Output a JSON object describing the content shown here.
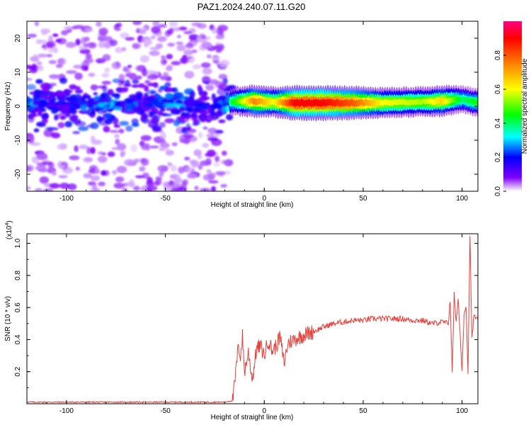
{
  "title": "PAZ1.2024.240.07.11.G20",
  "chart_data": [
    {
      "type": "heatmap",
      "xlabel": "Height of straight line (km)",
      "ylabel": "Frequency (Hz)",
      "xlim": [
        -120,
        108
      ],
      "ylim": [
        -25,
        25
      ],
      "x_ticks": [
        -100,
        -50,
        0,
        50,
        100
      ],
      "y_ticks": [
        20,
        10,
        0,
        -10,
        -20
      ],
      "x_ticks_labels": [
        "-100",
        "-50",
        "0",
        "50",
        "100"
      ],
      "y_ticks_labels": [
        "20",
        "10",
        "0",
        "-10",
        "-20"
      ],
      "colorbar": {
        "label": "Normalized spectral amplitude",
        "range": [
          0,
          1
        ],
        "ticks": [
          0.0,
          0.2,
          0.4,
          0.6,
          0.8
        ],
        "tick_labels": [
          "0.0",
          "0.2",
          "0.4",
          "0.6",
          "0.8"
        ],
        "colormap": [
          "#ffffff",
          "#7f00ff",
          "#0000ff",
          "#00ffff",
          "#00ff00",
          "#ffff00",
          "#ff8000",
          "#ff0000",
          "#ff0080"
        ]
      },
      "band": [
        {
          "x": -115,
          "freq": 1.0,
          "amp": 0.25
        },
        {
          "x": -100,
          "freq": 0.5,
          "amp": 0.2
        },
        {
          "x": -80,
          "freq": 0.0,
          "amp": 0.3
        },
        {
          "x": -60,
          "freq": 1.0,
          "amp": 0.2
        },
        {
          "x": -45,
          "freq": 1.0,
          "amp": 0.3
        },
        {
          "x": -25,
          "freq": 0.0,
          "amp": 0.2
        },
        {
          "x": -15,
          "freq": 1.5,
          "amp": 0.45
        },
        {
          "x": -5,
          "freq": 1.5,
          "amp": 0.75
        },
        {
          "x": 5,
          "freq": 1.2,
          "amp": 0.6
        },
        {
          "x": 15,
          "freq": 1.0,
          "amp": 0.9
        },
        {
          "x": 30,
          "freq": 1.0,
          "amp": 0.9
        },
        {
          "x": 45,
          "freq": 1.0,
          "amp": 0.8
        },
        {
          "x": 60,
          "freq": 1.0,
          "amp": 0.6
        },
        {
          "x": 80,
          "freq": 1.3,
          "amp": 0.55
        },
        {
          "x": 90,
          "freq": 1.5,
          "amp": 0.65
        },
        {
          "x": 100,
          "freq": 2.0,
          "amp": 0.4
        },
        {
          "x": 108,
          "freq": 1.0,
          "amp": 0.45
        }
      ]
    },
    {
      "type": "line",
      "xlabel": "Height of straight line (km)",
      "ylabel": "SNR (10 * v/v)",
      "y_multiplier_label": "(x10",
      "y_multiplier_exp": "4",
      "y_multiplier_close": ")",
      "xlim": [
        -120,
        108
      ],
      "ylim": [
        0,
        1.06
      ],
      "x_ticks": [
        -100,
        -50,
        0,
        50,
        100
      ],
      "y_ticks": [
        0.2,
        0.4,
        0.6,
        0.8,
        1.0
      ],
      "x_ticks_labels": [
        "-100",
        "-50",
        "0",
        "50",
        "100"
      ],
      "y_ticks_labels": [
        "0.2",
        "0.4",
        "0.6",
        "0.8",
        "1.0"
      ],
      "color": "#e8403c",
      "series": [
        {
          "x": [
            -120,
            -110,
            -100,
            -90,
            -80,
            -70,
            -60,
            -50,
            -40,
            -30,
            -20,
            -16,
            -15,
            -14,
            -13,
            -12,
            -11,
            -10,
            -8,
            -6,
            -4,
            -2,
            0,
            2,
            4,
            6,
            8,
            10,
            12,
            15,
            20,
            25,
            30,
            35,
            40,
            45,
            50,
            55,
            60,
            65,
            70,
            75,
            80,
            85,
            90,
            93,
            94,
            95,
            96,
            97,
            98,
            100,
            101,
            102,
            103,
            104,
            105,
            106,
            108
          ],
          "y": [
            0.01,
            0.01,
            0.01,
            0.01,
            0.01,
            0.01,
            0.01,
            0.01,
            0.01,
            0.01,
            0.01,
            0.02,
            0.12,
            0.25,
            0.36,
            0.3,
            0.42,
            0.2,
            0.32,
            0.15,
            0.34,
            0.36,
            0.3,
            0.4,
            0.33,
            0.36,
            0.42,
            0.25,
            0.38,
            0.4,
            0.43,
            0.45,
            0.48,
            0.5,
            0.51,
            0.52,
            0.52,
            0.53,
            0.53,
            0.53,
            0.53,
            0.52,
            0.52,
            0.5,
            0.51,
            0.5,
            0.65,
            0.18,
            0.7,
            0.5,
            0.65,
            0.2,
            0.55,
            0.62,
            0.2,
            1.05,
            0.4,
            0.55,
            0.52
          ]
        }
      ]
    }
  ]
}
